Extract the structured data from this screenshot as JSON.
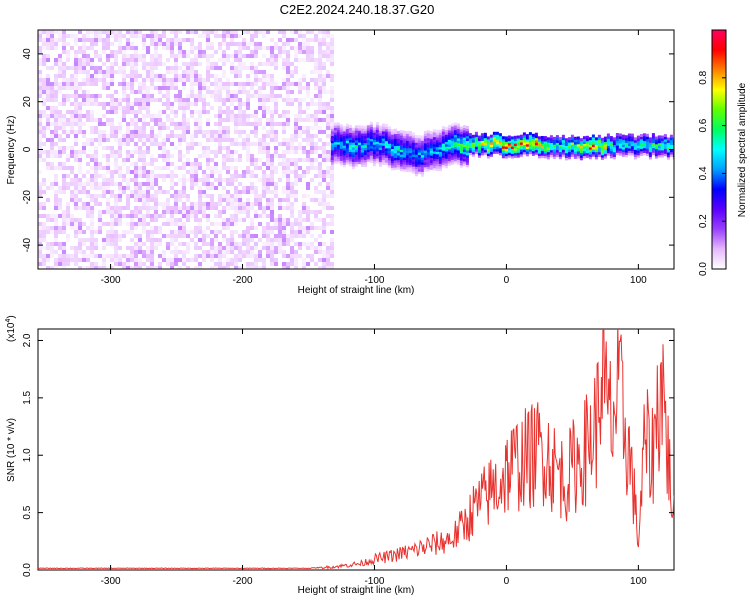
{
  "title": "C2E2.2024.240.18.37.G20",
  "chart_data": [
    {
      "type": "heatmap",
      "xlabel": "Height of straight line (km)",
      "ylabel": "Frequency (Hz)",
      "xlim": [
        -355,
        127
      ],
      "ylim": [
        -50,
        50
      ],
      "xticks": [
        {
          "v": -300,
          "label": "-300"
        },
        {
          "v": -200,
          "label": "-200"
        },
        {
          "v": -100,
          "label": "-100"
        },
        {
          "v": 0,
          "label": "0"
        },
        {
          "v": 100,
          "label": "100"
        }
      ],
      "yticks": [
        {
          "v": -40,
          "label": "-40"
        },
        {
          "v": -20,
          "label": "-20"
        },
        {
          "v": 0,
          "label": "0"
        },
        {
          "v": 20,
          "label": "20"
        },
        {
          "v": 40,
          "label": "40"
        }
      ],
      "colorbar": {
        "label": "Normalized spectral amplitude",
        "range": [
          0,
          1
        ],
        "ticks": [
          {
            "v": 0.0,
            "label": "0.0"
          },
          {
            "v": 0.2,
            "label": "0.2"
          },
          {
            "v": 0.4,
            "label": "0.4"
          },
          {
            "v": 0.6,
            "label": "0.6"
          },
          {
            "v": 0.8,
            "label": "0.8"
          }
        ],
        "colors": [
          "#ffffff",
          "#e6b8ff",
          "#9a40ff",
          "#5a00ff",
          "#0000ff",
          "#00a0ff",
          "#00ffff",
          "#00ff60",
          "#60ff00",
          "#ffff00",
          "#ff8000",
          "#ff0000",
          "#ff0060"
        ]
      },
      "regions": [
        {
          "name": "noise",
          "x_range": [
            -355,
            -133
          ],
          "freq_range": [
            -50,
            50
          ],
          "amplitude_range": [
            0.02,
            0.1
          ]
        },
        {
          "name": "signal-band",
          "x_range": [
            -133,
            127
          ],
          "center_freq": 1.5,
          "bandwidth_hz": 8,
          "amplitude_range": [
            0.1,
            0.95
          ]
        }
      ],
      "signal_track": [
        {
          "x": -130,
          "f": 2.0,
          "a": 0.45
        },
        {
          "x": -115,
          "f": 1.0,
          "a": 0.5
        },
        {
          "x": -100,
          "f": 2.5,
          "a": 0.45
        },
        {
          "x": -85,
          "f": -0.5,
          "a": 0.5
        },
        {
          "x": -70,
          "f": -2.5,
          "a": 0.45
        },
        {
          "x": -55,
          "f": -1.0,
          "a": 0.45
        },
        {
          "x": -40,
          "f": 1.5,
          "a": 0.55
        },
        {
          "x": -25,
          "f": 2.0,
          "a": 0.7
        },
        {
          "x": -10,
          "f": 2.0,
          "a": 0.85
        },
        {
          "x": 5,
          "f": 2.0,
          "a": 0.9
        },
        {
          "x": 20,
          "f": 2.0,
          "a": 0.88
        },
        {
          "x": 35,
          "f": 1.5,
          "a": 0.6
        },
        {
          "x": 50,
          "f": 1.0,
          "a": 0.7
        },
        {
          "x": 65,
          "f": 1.0,
          "a": 0.9
        },
        {
          "x": 80,
          "f": 1.5,
          "a": 0.6
        },
        {
          "x": 95,
          "f": 1.5,
          "a": 0.55
        },
        {
          "x": 110,
          "f": 1.5,
          "a": 0.6
        },
        {
          "x": 125,
          "f": 1.5,
          "a": 0.6
        }
      ]
    },
    {
      "type": "line",
      "xlabel": "Height of straight line (km)",
      "ylabel": "SNR (10 * v/v)",
      "scale_label": "(x10",
      "scale_exponent": "4",
      "scale_close": ")",
      "xlim": [
        -355,
        127
      ],
      "ylim": [
        0,
        2.1
      ],
      "xticks": [
        {
          "v": -300,
          "label": "-300"
        },
        {
          "v": -200,
          "label": "-200"
        },
        {
          "v": -100,
          "label": "-100"
        },
        {
          "v": 0,
          "label": "0"
        },
        {
          "v": 100,
          "label": "100"
        }
      ],
      "yticks": [
        {
          "v": 0.0,
          "label": "0.0"
        },
        {
          "v": 0.5,
          "label": "0.5"
        },
        {
          "v": 1.0,
          "label": "1.0"
        },
        {
          "v": 1.5,
          "label": "1.5"
        },
        {
          "v": 2.0,
          "label": "2.0"
        }
      ],
      "color": "#e8322e",
      "series": [
        {
          "x": [
            -355,
            -300,
            -250,
            -200,
            -150,
            -130,
            -110,
            -100,
            -90,
            -80,
            -70,
            -60,
            -50,
            -40,
            -30,
            -25,
            -20,
            -15,
            -10,
            -5,
            0,
            5,
            10,
            15,
            20,
            25,
            30,
            35,
            40,
            45,
            50,
            55,
            60,
            65,
            70,
            72,
            75,
            80,
            85,
            90,
            95,
            100,
            105,
            110,
            115,
            118,
            120,
            125,
            127
          ],
          "y": [
            0.015,
            0.015,
            0.015,
            0.015,
            0.015,
            0.03,
            0.06,
            0.1,
            0.12,
            0.15,
            0.18,
            0.22,
            0.25,
            0.3,
            0.45,
            0.55,
            0.62,
            0.68,
            0.75,
            0.8,
            0.9,
            0.95,
            1.0,
            1.02,
            1.05,
            1.1,
            1.1,
            0.95,
            0.9,
            0.8,
            0.95,
            1.0,
            1.1,
            1.25,
            1.4,
            2.0,
            1.5,
            1.35,
            1.6,
            1.3,
            0.9,
            0.25,
            1.2,
            1.0,
            1.5,
            1.8,
            1.4,
            0.7,
            0.65
          ]
        }
      ]
    }
  ]
}
